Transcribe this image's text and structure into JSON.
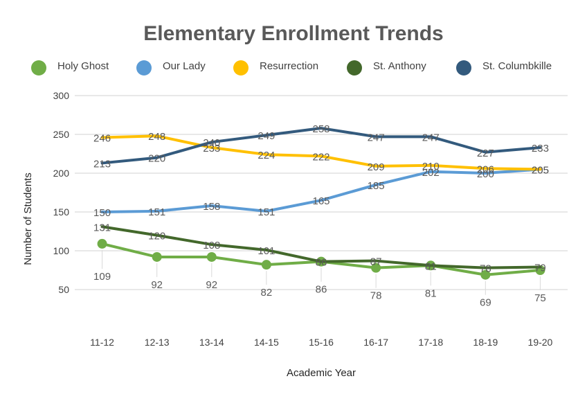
{
  "chart_data": {
    "type": "line",
    "title": "Elementary Enrollment Trends",
    "xlabel": "Academic Year",
    "ylabel": "Number of Students",
    "categories": [
      "11-12",
      "12-13",
      "13-14",
      "14-15",
      "15-16",
      "16-17",
      "17-18",
      "18-19",
      "19-20"
    ],
    "ylim": [
      50,
      300
    ],
    "yticks": [
      50,
      100,
      150,
      200,
      250,
      300
    ],
    "grid": true,
    "legend": "top",
    "series": [
      {
        "name": "Holy Ghost",
        "color": "#70ad47",
        "values": [
          109,
          92,
          92,
          82,
          86,
          78,
          81,
          69,
          75
        ]
      },
      {
        "name": "Our Lady",
        "color": "#5b9bd5",
        "values": [
          150,
          151,
          158,
          151,
          165,
          185,
          202,
          200,
          205
        ]
      },
      {
        "name": "Resurrection",
        "color": "#ffc000",
        "values": [
          246,
          248,
          233,
          224,
          222,
          209,
          210,
          206,
          205
        ]
      },
      {
        "name": "St. Anthony",
        "color": "#43682b",
        "values": [
          131,
          120,
          108,
          101,
          86,
          87,
          81,
          78,
          79
        ]
      },
      {
        "name": "St. Columbkille",
        "color": "#335a7d",
        "values": [
          213,
          220,
          240,
          249,
          258,
          247,
          247,
          227,
          233
        ]
      }
    ]
  }
}
